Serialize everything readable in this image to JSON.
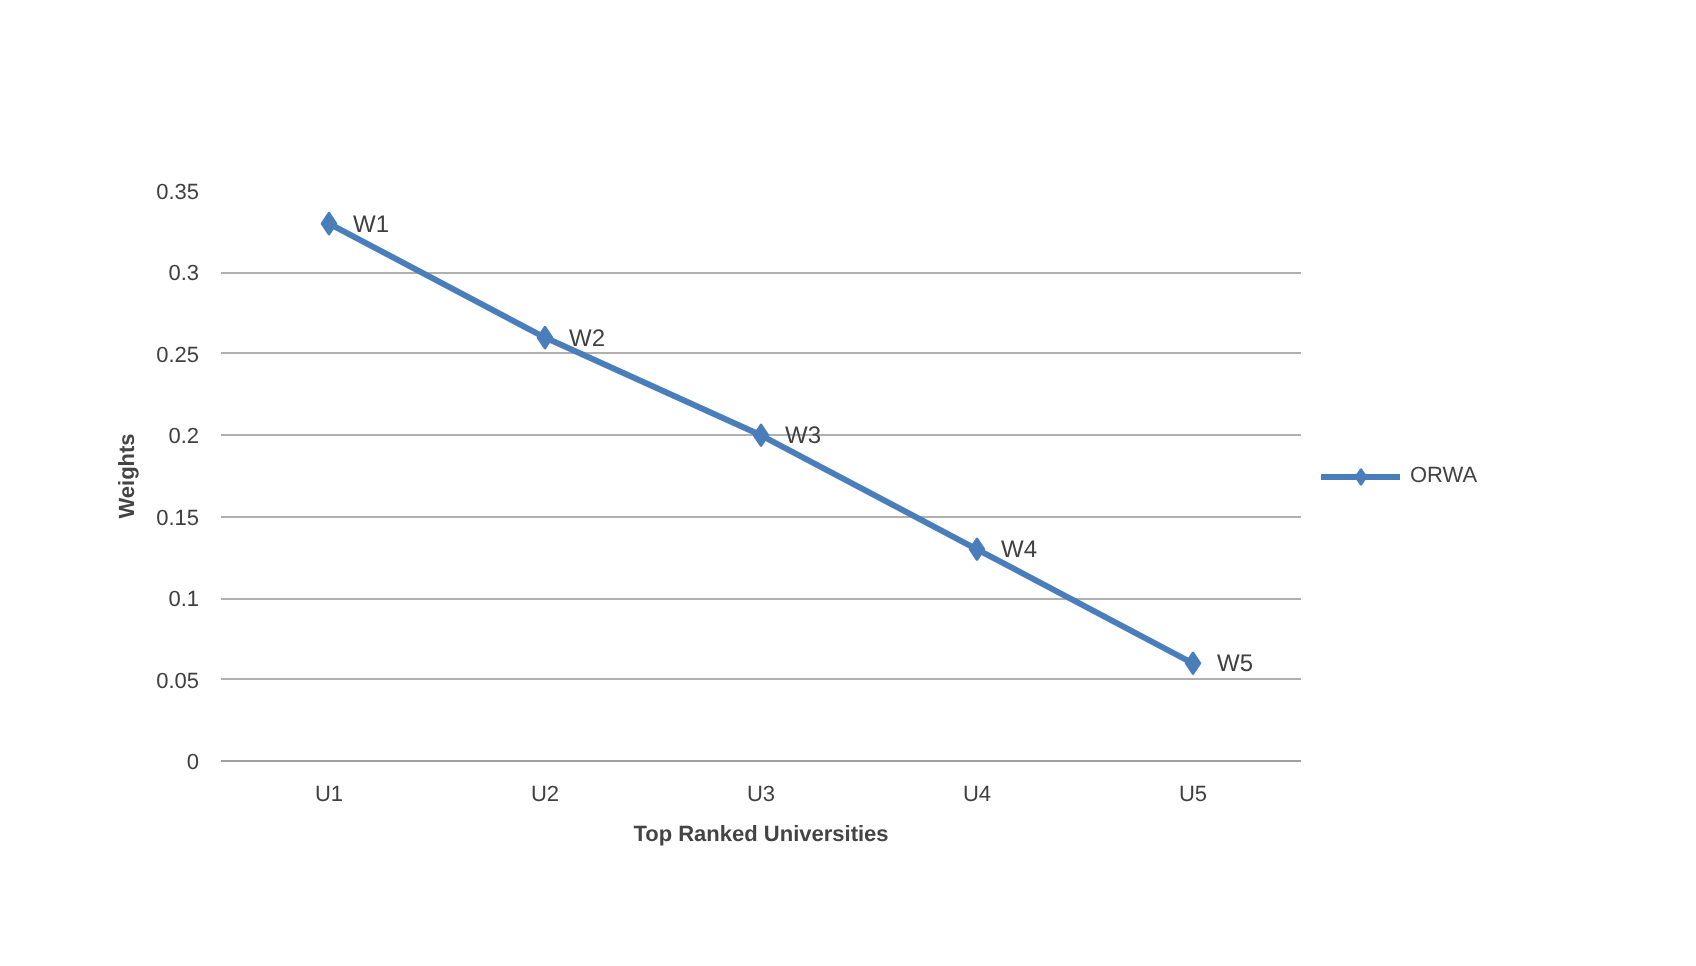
{
  "chart_data": {
    "type": "line",
    "xlabel": "Top Ranked Universities",
    "ylabel": "Weights",
    "categories": [
      "U1",
      "U2",
      "U3",
      "U4",
      "U5"
    ],
    "series": [
      {
        "name": "ORWA",
        "color": "#4a7ebb",
        "values": [
          0.33,
          0.26,
          0.2,
          0.13,
          0.06
        ]
      }
    ],
    "ylim": [
      0,
      0.35
    ],
    "yticks": [
      0,
      0.05,
      0.1,
      0.15,
      0.2,
      0.25,
      0.3,
      0.35
    ],
    "grid": "y",
    "legend": "right",
    "marker": "diamond",
    "line_style": "solid",
    "annotations": [
      {
        "text": "W1",
        "x": "U1",
        "y": 0.33
      },
      {
        "text": "W2",
        "x": "U2",
        "y": 0.26
      },
      {
        "text": "W3",
        "x": "U3",
        "y": 0.2
      },
      {
        "text": "W4",
        "x": "U4",
        "y": 0.13
      },
      {
        "text": "W5",
        "x": "U5",
        "y": 0.06
      }
    ]
  }
}
